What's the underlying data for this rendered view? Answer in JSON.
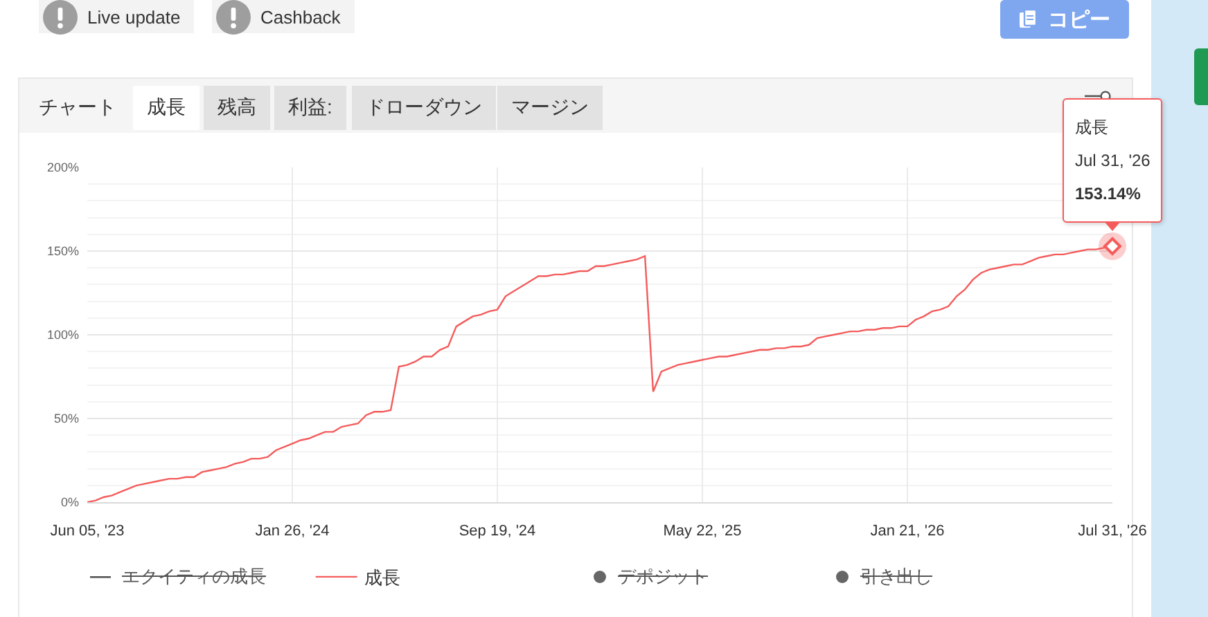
{
  "chart_data": {
    "type": "line",
    "categories": [
      "Jun 05, '23",
      null,
      null,
      null,
      null,
      null,
      null,
      null,
      null,
      null,
      null,
      null,
      null,
      null,
      null,
      null,
      null,
      null,
      null,
      null,
      null,
      null,
      null,
      null,
      null,
      "Jan 26, '24",
      null,
      null,
      null,
      null,
      null,
      null,
      null,
      null,
      null,
      null,
      null,
      null,
      null,
      null,
      null,
      null,
      null,
      null,
      null,
      null,
      null,
      null,
      null,
      null,
      "Sep 19, '24",
      null,
      null,
      null,
      null,
      null,
      null,
      null,
      null,
      null,
      null,
      null,
      null,
      null,
      null,
      null,
      null,
      null,
      null,
      null,
      null,
      null,
      null,
      null,
      null,
      "May 22, '25",
      null,
      null,
      null,
      null,
      null,
      null,
      null,
      null,
      null,
      null,
      null,
      null,
      null,
      null,
      null,
      null,
      null,
      null,
      null,
      null,
      null,
      null,
      null,
      null,
      "Jan 21, '26",
      null,
      null,
      null,
      null,
      null,
      null,
      null,
      null,
      null,
      null,
      null,
      null,
      null,
      null,
      null,
      null,
      null,
      null,
      null,
      null,
      null,
      null,
      null,
      null,
      "Jul 31, '26"
    ],
    "series": [
      {
        "name": "成長",
        "color": "#f45b5b",
        "values": [
          0,
          1,
          3,
          4,
          6,
          8,
          10,
          11,
          12,
          13,
          14,
          14,
          15,
          15,
          18,
          19,
          20,
          21,
          23,
          24,
          26,
          26,
          27,
          31,
          33,
          35,
          37,
          38,
          40,
          42,
          42,
          45,
          46,
          47,
          52,
          54,
          54,
          55,
          81,
          82,
          84,
          87,
          87,
          91,
          93,
          105,
          108,
          111,
          112,
          114,
          115,
          123,
          126,
          129,
          132,
          135,
          135,
          136,
          136,
          137,
          138,
          138,
          141,
          141,
          142,
          143,
          144,
          145,
          147,
          66,
          78,
          80,
          82,
          83,
          84,
          85,
          86,
          87,
          87,
          88,
          89,
          90,
          91,
          91,
          92,
          92,
          93,
          93,
          94,
          98,
          99,
          100,
          101,
          102,
          102,
          103,
          103,
          104,
          104,
          105,
          105,
          109,
          111,
          114,
          115,
          117,
          123,
          127,
          133,
          137,
          139,
          140,
          141,
          142,
          142,
          144,
          146,
          147,
          148,
          148,
          149,
          150,
          151,
          151,
          152,
          153.14
        ]
      }
    ],
    "ylim": [
      0,
      200
    ],
    "yticks": [
      {
        "value": 0,
        "label": "0%"
      },
      {
        "value": 10,
        "label": null
      },
      {
        "value": 20,
        "label": null
      },
      {
        "value": 30,
        "label": null
      },
      {
        "value": 40,
        "label": null
      },
      {
        "value": 50,
        "label": "50%"
      },
      {
        "value": 60,
        "label": null
      },
      {
        "value": 70,
        "label": null
      },
      {
        "value": 80,
        "label": null
      },
      {
        "value": 90,
        "label": null
      },
      {
        "value": 100,
        "label": "100%"
      },
      {
        "value": 110,
        "label": null
      },
      {
        "value": 120,
        "label": null
      },
      {
        "value": 130,
        "label": null
      },
      {
        "value": 140,
        "label": null
      },
      {
        "value": 150,
        "label": "150%"
      },
      {
        "value": 160,
        "label": null
      },
      {
        "value": 170,
        "label": null
      },
      {
        "value": 180,
        "label": null
      },
      {
        "value": 190,
        "label": null
      },
      {
        "value": 200,
        "label": "200%"
      }
    ],
    "grid": true,
    "legend": "bottom",
    "annotations": [
      "Live update",
      "Cashback",
      "コピー",
      "チャート",
      "成長",
      "残高",
      "利益:",
      "ドローダウン",
      "マージン",
      "エクイティの成長",
      "デポジット",
      "引き出し",
      {
        "text": "成長\nJul 31, '26\n153.14%",
        "x": "Jul 31, '26",
        "y": 153.14
      }
    ]
  }
}
